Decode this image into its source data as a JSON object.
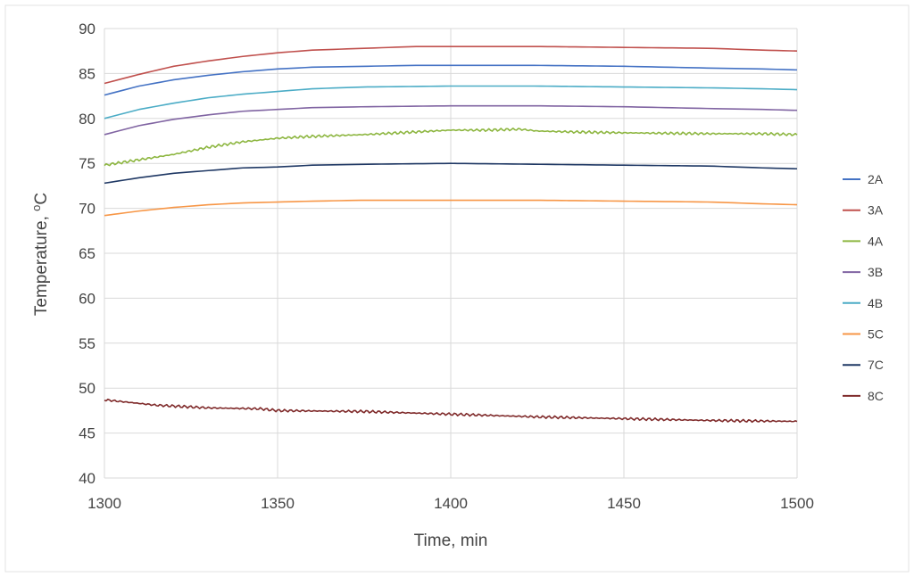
{
  "chart_data": {
    "type": "line",
    "xlabel": "Time, min",
    "ylabel": {
      "main": "Temperature, ",
      "sup": "o",
      "unit": "C"
    },
    "xlim": [
      1300,
      1500
    ],
    "ylim": [
      40,
      90
    ],
    "xticks": [
      1300,
      1350,
      1400,
      1450,
      1500
    ],
    "yticks": [
      40,
      45,
      50,
      55,
      60,
      65,
      70,
      75,
      80,
      85,
      90
    ],
    "grid": true,
    "legend_position": "right",
    "series": [
      {
        "name": "2A",
        "color": "#4472C4",
        "noisy": false,
        "points": [
          [
            1300,
            82.6
          ],
          [
            1310,
            83.6
          ],
          [
            1320,
            84.3
          ],
          [
            1330,
            84.8
          ],
          [
            1340,
            85.2
          ],
          [
            1350,
            85.5
          ],
          [
            1360,
            85.7
          ],
          [
            1375,
            85.8
          ],
          [
            1390,
            85.9
          ],
          [
            1400,
            85.9
          ],
          [
            1425,
            85.9
          ],
          [
            1450,
            85.8
          ],
          [
            1475,
            85.6
          ],
          [
            1490,
            85.5
          ],
          [
            1500,
            85.4
          ]
        ]
      },
      {
        "name": "3A",
        "color": "#C0504D",
        "noisy": false,
        "points": [
          [
            1300,
            83.9
          ],
          [
            1310,
            84.9
          ],
          [
            1320,
            85.8
          ],
          [
            1330,
            86.4
          ],
          [
            1340,
            86.9
          ],
          [
            1350,
            87.3
          ],
          [
            1360,
            87.6
          ],
          [
            1375,
            87.8
          ],
          [
            1390,
            88.0
          ],
          [
            1400,
            88.0
          ],
          [
            1425,
            88.0
          ],
          [
            1450,
            87.9
          ],
          [
            1475,
            87.8
          ],
          [
            1490,
            87.6
          ],
          [
            1500,
            87.5
          ]
        ]
      },
      {
        "name": "4A",
        "color": "#8DB640",
        "noisy": true,
        "points": [
          [
            1300,
            74.8
          ],
          [
            1310,
            75.4
          ],
          [
            1320,
            76.0
          ],
          [
            1330,
            76.8
          ],
          [
            1340,
            77.4
          ],
          [
            1350,
            77.8
          ],
          [
            1360,
            78.0
          ],
          [
            1375,
            78.2
          ],
          [
            1390,
            78.5
          ],
          [
            1400,
            78.7
          ],
          [
            1410,
            78.7
          ],
          [
            1420,
            78.8
          ],
          [
            1425,
            78.6
          ],
          [
            1435,
            78.5
          ],
          [
            1450,
            78.4
          ],
          [
            1475,
            78.3
          ],
          [
            1490,
            78.3
          ],
          [
            1500,
            78.2
          ]
        ]
      },
      {
        "name": "3B",
        "color": "#8064A2",
        "noisy": false,
        "points": [
          [
            1300,
            78.2
          ],
          [
            1310,
            79.2
          ],
          [
            1320,
            79.9
          ],
          [
            1330,
            80.4
          ],
          [
            1340,
            80.8
          ],
          [
            1350,
            81.0
          ],
          [
            1360,
            81.2
          ],
          [
            1375,
            81.3
          ],
          [
            1400,
            81.4
          ],
          [
            1425,
            81.4
          ],
          [
            1450,
            81.3
          ],
          [
            1475,
            81.1
          ],
          [
            1490,
            81.0
          ],
          [
            1500,
            80.9
          ]
        ]
      },
      {
        "name": "4B",
        "color": "#4BACC6",
        "noisy": false,
        "points": [
          [
            1300,
            80.0
          ],
          [
            1310,
            81.0
          ],
          [
            1320,
            81.7
          ],
          [
            1330,
            82.3
          ],
          [
            1340,
            82.7
          ],
          [
            1350,
            83.0
          ],
          [
            1360,
            83.3
          ],
          [
            1375,
            83.5
          ],
          [
            1400,
            83.6
          ],
          [
            1425,
            83.6
          ],
          [
            1450,
            83.5
          ],
          [
            1475,
            83.4
          ],
          [
            1490,
            83.3
          ],
          [
            1500,
            83.2
          ]
        ]
      },
      {
        "name": "5C",
        "color": "#F79646",
        "noisy": false,
        "points": [
          [
            1300,
            69.2
          ],
          [
            1310,
            69.7
          ],
          [
            1320,
            70.1
          ],
          [
            1330,
            70.4
          ],
          [
            1340,
            70.6
          ],
          [
            1350,
            70.7
          ],
          [
            1360,
            70.8
          ],
          [
            1375,
            70.9
          ],
          [
            1400,
            70.9
          ],
          [
            1425,
            70.9
          ],
          [
            1450,
            70.8
          ],
          [
            1475,
            70.7
          ],
          [
            1490,
            70.5
          ],
          [
            1500,
            70.4
          ]
        ]
      },
      {
        "name": "7C",
        "color": "#1F3864",
        "noisy": false,
        "points": [
          [
            1300,
            72.8
          ],
          [
            1310,
            73.4
          ],
          [
            1320,
            73.9
          ],
          [
            1330,
            74.2
          ],
          [
            1340,
            74.5
          ],
          [
            1350,
            74.6
          ],
          [
            1360,
            74.8
          ],
          [
            1375,
            74.9
          ],
          [
            1400,
            75.0
          ],
          [
            1425,
            74.9
          ],
          [
            1450,
            74.8
          ],
          [
            1475,
            74.7
          ],
          [
            1490,
            74.5
          ],
          [
            1500,
            74.4
          ]
        ]
      },
      {
        "name": "8C",
        "color": "#7F2A2A",
        "noisy": true,
        "points": [
          [
            1300,
            48.7
          ],
          [
            1315,
            48.1
          ],
          [
            1330,
            47.8
          ],
          [
            1345,
            47.7
          ],
          [
            1350,
            47.5
          ],
          [
            1375,
            47.4
          ],
          [
            1400,
            47.1
          ],
          [
            1425,
            46.8
          ],
          [
            1450,
            46.6
          ],
          [
            1475,
            46.4
          ],
          [
            1500,
            46.3
          ]
        ]
      }
    ]
  }
}
